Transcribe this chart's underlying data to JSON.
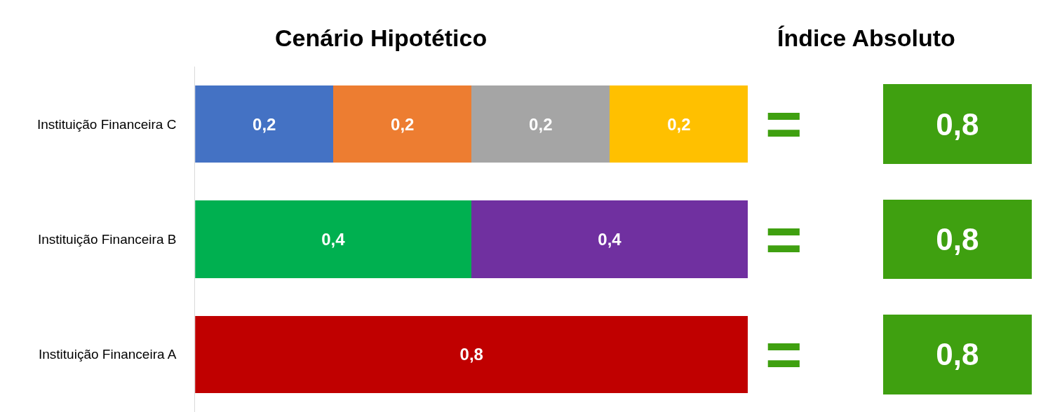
{
  "chart_data": [
    {
      "type": "bar",
      "orientation": "horizontal",
      "stacked": true,
      "title": "Cenário Hipotético",
      "categories": [
        "Instituição Financeira C",
        "Instituição Financeira B",
        "Instituição Financeira A"
      ],
      "xlim": [
        0,
        0.8
      ],
      "tick_labels": "y",
      "series": [
        {
          "color": "#4472c4",
          "values": [
            0.2,
            null,
            null
          ],
          "value_labels": [
            "0,2",
            null,
            null
          ]
        },
        {
          "color": "#ed7d31",
          "values": [
            0.2,
            null,
            null
          ],
          "value_labels": [
            "0,2",
            null,
            null
          ]
        },
        {
          "color": "#a5a5a5",
          "values": [
            0.2,
            null,
            null
          ],
          "value_labels": [
            "0,2",
            null,
            null
          ]
        },
        {
          "color": "#ffc000",
          "values": [
            0.2,
            null,
            null
          ],
          "value_labels": [
            "0,2",
            null,
            null
          ]
        },
        {
          "color": "#00b050",
          "values": [
            null,
            0.4,
            null
          ],
          "value_labels": [
            null,
            "0,4",
            null
          ]
        },
        {
          "color": "#7030a0",
          "values": [
            null,
            0.4,
            null
          ],
          "value_labels": [
            null,
            "0,4",
            null
          ]
        },
        {
          "color": "#c00000",
          "values": [
            null,
            null,
            0.8
          ],
          "value_labels": [
            null,
            null,
            "0,8"
          ]
        }
      ]
    },
    {
      "type": "other",
      "title": "Índice Absoluto",
      "categories": [
        null,
        null,
        null
      ],
      "values": [
        0.8,
        0.8,
        0.8
      ],
      "value_labels": [
        "0,8",
        "0,8",
        "0,8"
      ],
      "color": "#3fa010",
      "annotations": [
        "=",
        "=",
        "="
      ]
    }
  ]
}
